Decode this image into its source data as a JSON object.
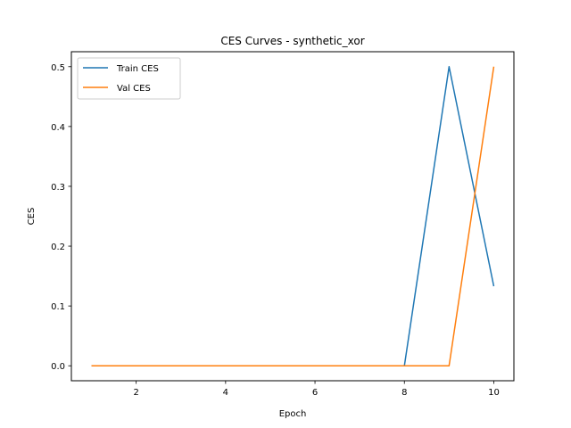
{
  "chart_data": {
    "type": "line",
    "title": "CES Curves - synthetic_xor",
    "xlabel": "Epoch",
    "ylabel": "CES",
    "xlim": [
      0.55,
      10.45
    ],
    "ylim": [
      -0.025,
      0.525
    ],
    "xticks": [
      2,
      4,
      6,
      8,
      10
    ],
    "xtick_labels": [
      "2",
      "4",
      "6",
      "8",
      "10"
    ],
    "yticks": [
      0.0,
      0.1,
      0.2,
      0.3,
      0.4,
      0.5
    ],
    "ytick_labels": [
      "0.0",
      "0.1",
      "0.2",
      "0.3",
      "0.4",
      "0.5"
    ],
    "grid": false,
    "legend_position": "upper-left",
    "x": [
      1,
      2,
      3,
      4,
      5,
      6,
      7,
      8,
      9,
      10
    ],
    "series": [
      {
        "name": "Train CES",
        "color": "#1f77b4",
        "values": [
          0,
          0,
          0,
          0,
          0,
          0,
          0,
          0,
          0.5,
          0.133
        ]
      },
      {
        "name": "Val CES",
        "color": "#ff7f0e",
        "values": [
          0,
          0,
          0,
          0,
          0,
          0,
          0,
          0,
          0,
          0.5
        ]
      }
    ]
  }
}
